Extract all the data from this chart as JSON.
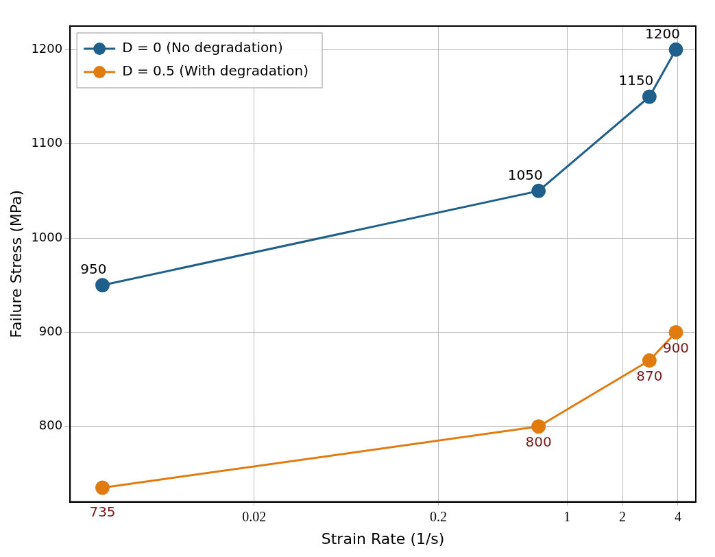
{
  "chart_data": {
    "type": "line",
    "xlabel": "Strain Rate (1/s)",
    "ylabel": "Failure Stress (MPa)",
    "log": "x",
    "xlim": [
      0.002,
      5
    ],
    "xticks": [
      0.02,
      0.2,
      1,
      2,
      4
    ],
    "ylim": [
      720,
      1225
    ],
    "yticks": [
      800,
      900,
      1000,
      1100,
      1200
    ],
    "x": [
      0.003,
      0.7,
      2.8,
      3.9
    ],
    "series": [
      {
        "name": "D = 0 (No degradation)",
        "color": "#1f5f8b",
        "values": [
          950,
          1050,
          1150,
          1200
        ]
      },
      {
        "name": "D = 0.5 (With degradation)",
        "color": "#e07b10",
        "values": [
          735,
          800,
          870,
          900
        ]
      }
    ],
    "data_labels": true,
    "grid": true,
    "legend": "top left",
    "marker": "circle",
    "line_style": "solid"
  }
}
